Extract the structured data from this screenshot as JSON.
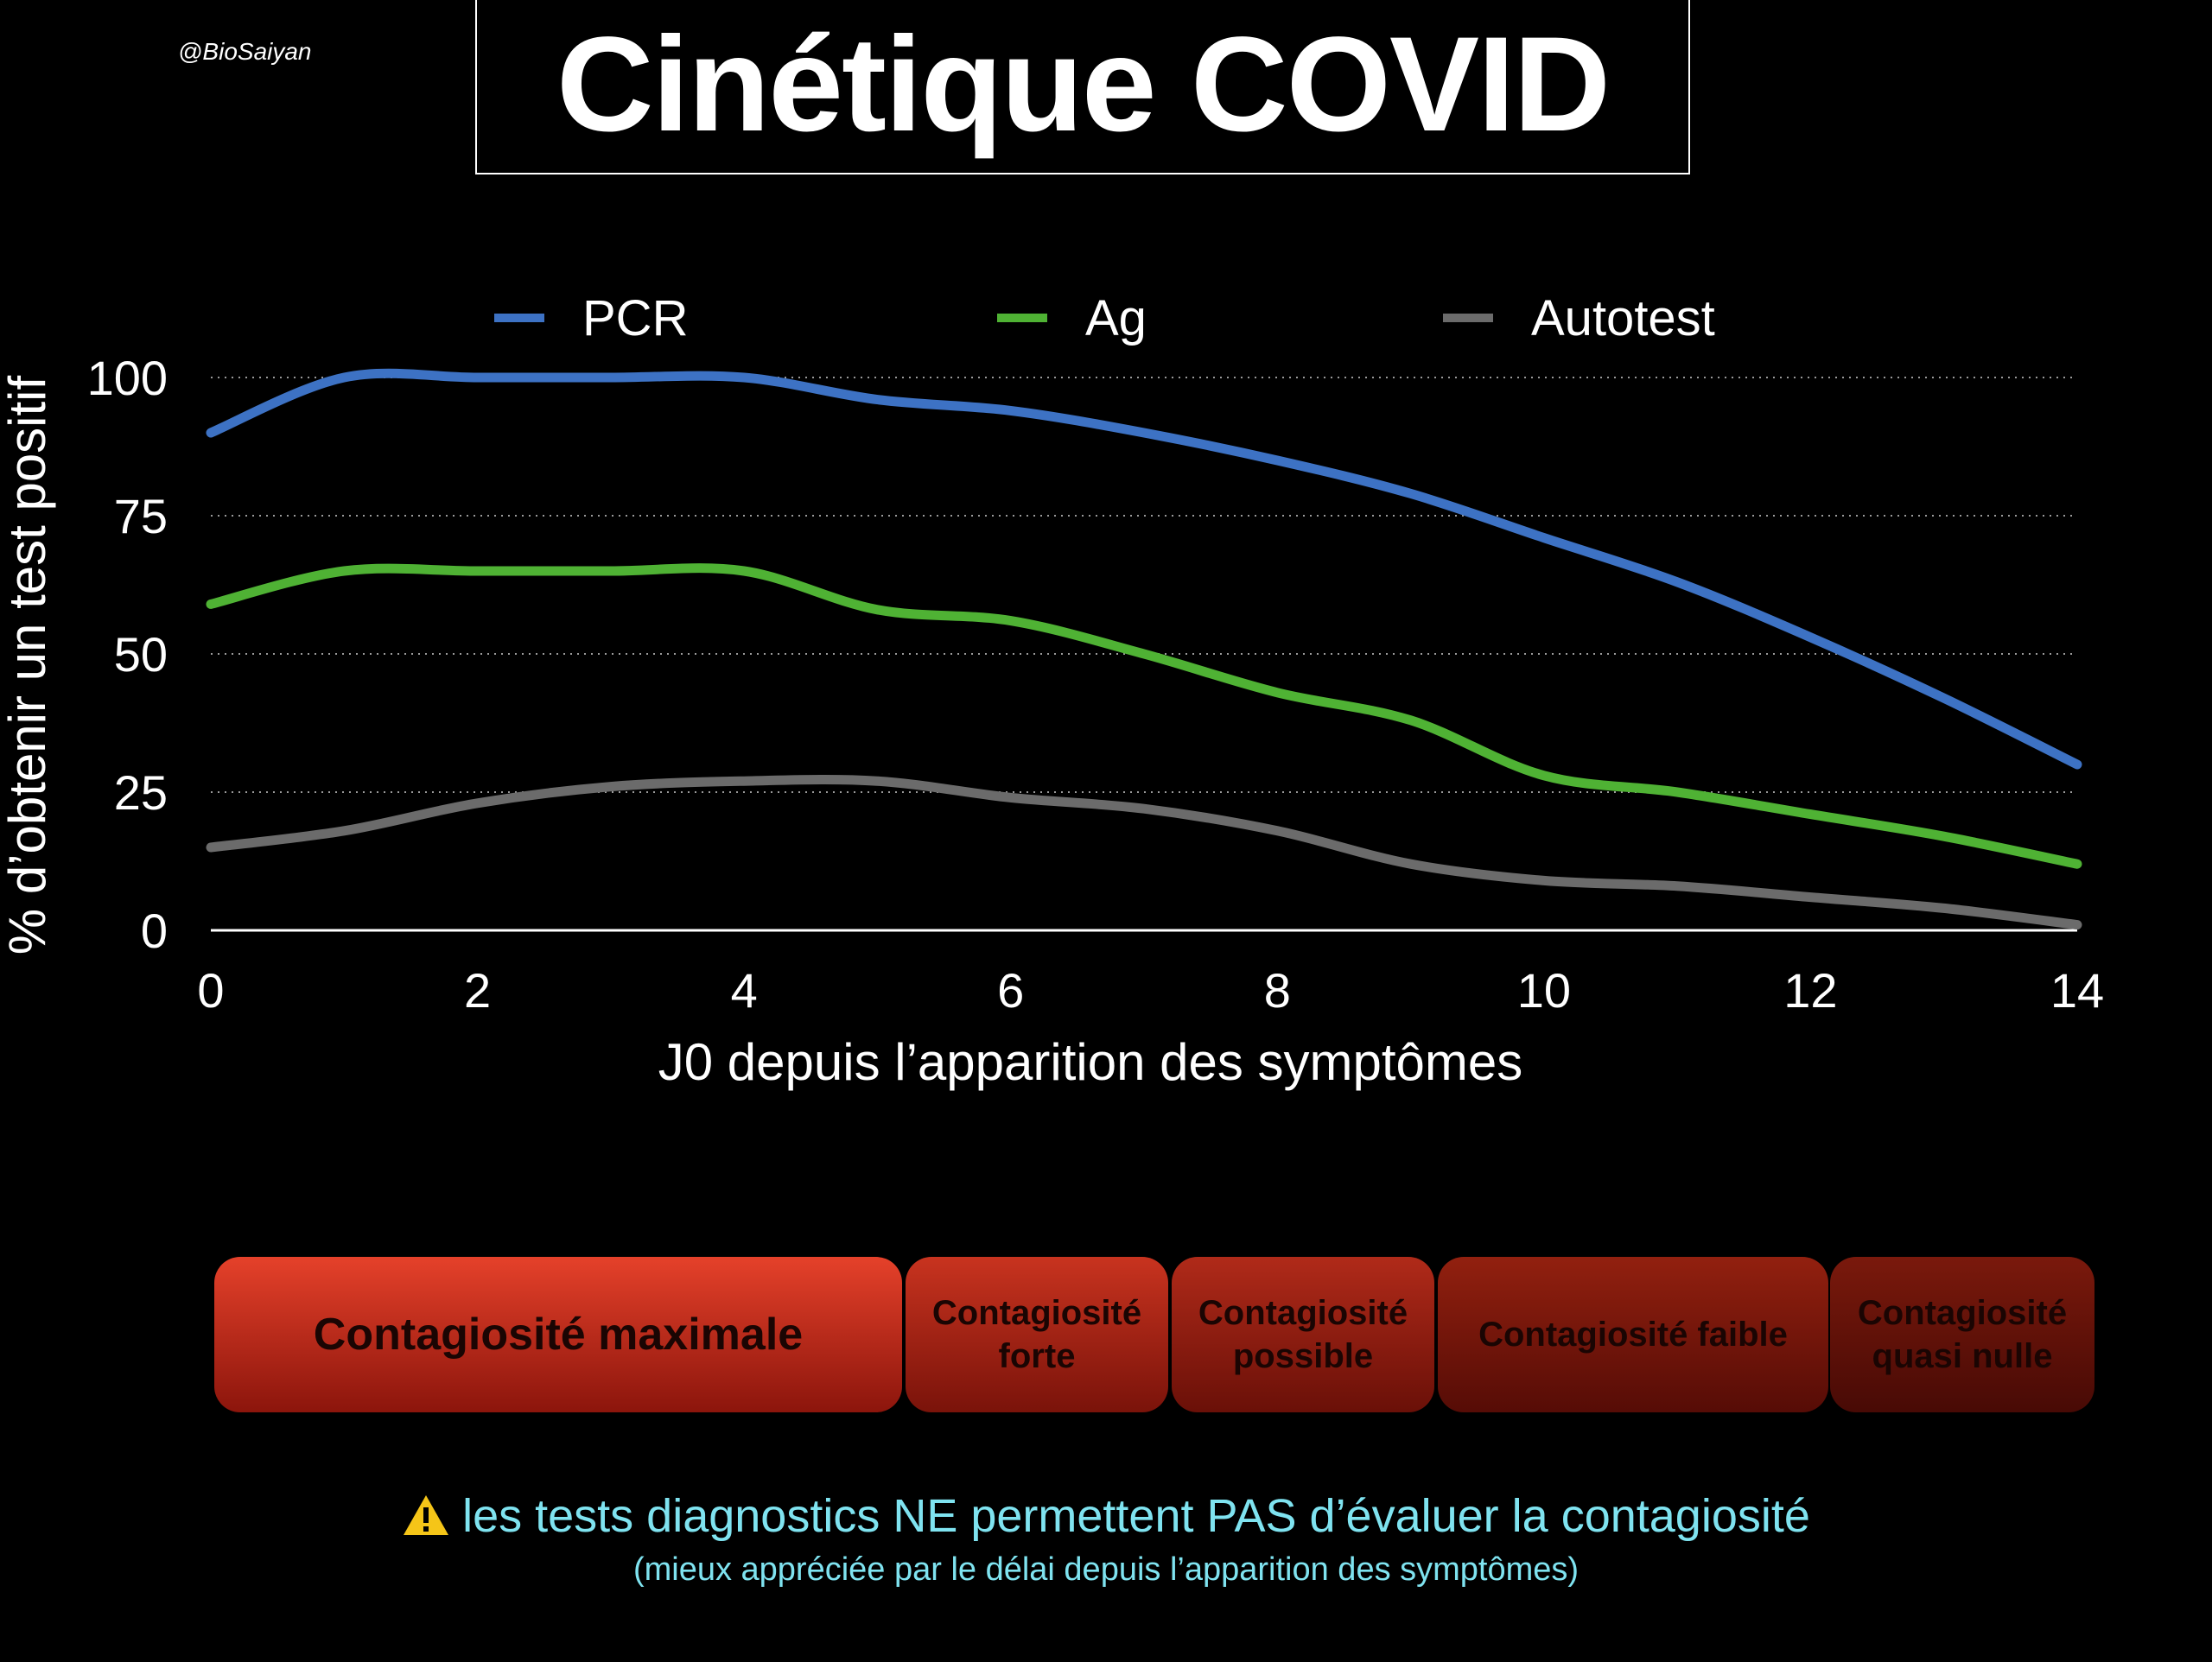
{
  "header": {
    "handle": "@BioSaiyan",
    "title": "Cinétique COVID"
  },
  "chart_data": {
    "type": "line",
    "xlabel": "J0 depuis l’apparition des symptômes",
    "ylabel": "% d’obtenir un test positif",
    "xlim": [
      0,
      14
    ],
    "ylim": [
      0,
      100
    ],
    "x_ticks": [
      0,
      2,
      4,
      6,
      8,
      10,
      12,
      14
    ],
    "y_ticks": [
      0,
      25,
      50,
      75,
      100
    ],
    "grid": "horizontal dotted",
    "legend_position": "top",
    "x": [
      0,
      1,
      2,
      3,
      4,
      5,
      6,
      7,
      8,
      9,
      10,
      11,
      12,
      13,
      14
    ],
    "series": [
      {
        "name": "PCR",
        "color": "#3d72c4",
        "values": [
          90,
          100,
          100,
          100,
          100,
          96,
          94,
          90,
          85,
          79,
          71,
          63,
          53,
          42,
          30
        ]
      },
      {
        "name": "Ag",
        "color": "#4fb234",
        "values": [
          59,
          65,
          65,
          65,
          65,
          58,
          56,
          50,
          43,
          38,
          28,
          25,
          21,
          17,
          12
        ]
      },
      {
        "name": "Autotest",
        "color": "#6b6b6b",
        "values": [
          15,
          18,
          23,
          26,
          27,
          27,
          24,
          22,
          18,
          12,
          9,
          8,
          6,
          4,
          1
        ]
      }
    ]
  },
  "zones": [
    {
      "label": "Contagiosité maximale",
      "top": "#e5412a",
      "bottom": "#8c150c"
    },
    {
      "label": "Contagiosité\nforte",
      "top": "#c8331f",
      "bottom": "#7a130a"
    },
    {
      "label": "Contagiosité\npossible",
      "top": "#b02a19",
      "bottom": "#6a1008"
    },
    {
      "label": "Contagiosité faible",
      "top": "#92200f",
      "bottom": "#560c06"
    },
    {
      "label": "Contagiosité\nquasi nulle",
      "top": "#7a190c",
      "bottom": "#480a05"
    }
  ],
  "footer": {
    "warning_icon": "warning-triangle-icon",
    "warning": "les tests diagnostics NE permettent PAS d’évaluer la contagiosité",
    "note": "(mieux appréciée par le délai depuis l’apparition des symptômes)"
  }
}
